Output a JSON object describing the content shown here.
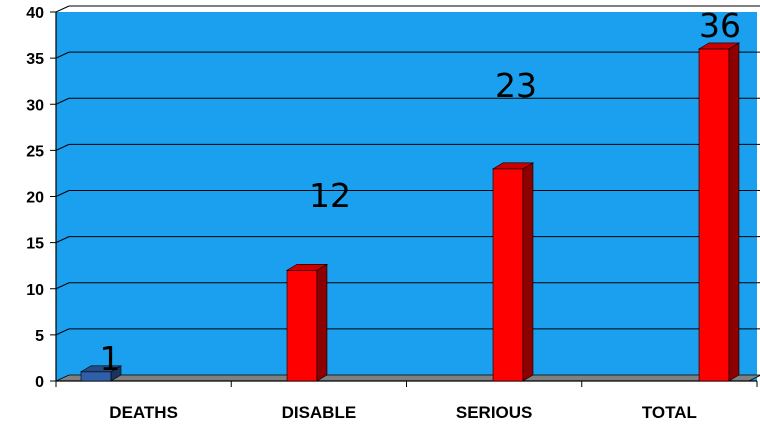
{
  "chart_data": {
    "type": "bar",
    "categories": [
      "DEATHS",
      "DISABLE",
      "SERIOUS",
      "TOTAL"
    ],
    "values": [
      1,
      12,
      23,
      36
    ],
    "data_labels": [
      "1",
      "12",
      "23",
      "36"
    ],
    "title": "",
    "xlabel": "",
    "ylabel": "",
    "ylim": [
      0,
      40
    ],
    "yticks": [
      0,
      5,
      10,
      15,
      20,
      25,
      30,
      35,
      40
    ],
    "grid": true,
    "legend": "none",
    "colors": {
      "plot_background": "#1aa0ee",
      "gridline": "#000000",
      "floor": "#808080",
      "bar_highlight": "#2f5fa8",
      "bar_default": "#ff0000"
    },
    "bar_colors": [
      "#2f5fa8",
      "#ff0000",
      "#ff0000",
      "#ff0000"
    ]
  }
}
